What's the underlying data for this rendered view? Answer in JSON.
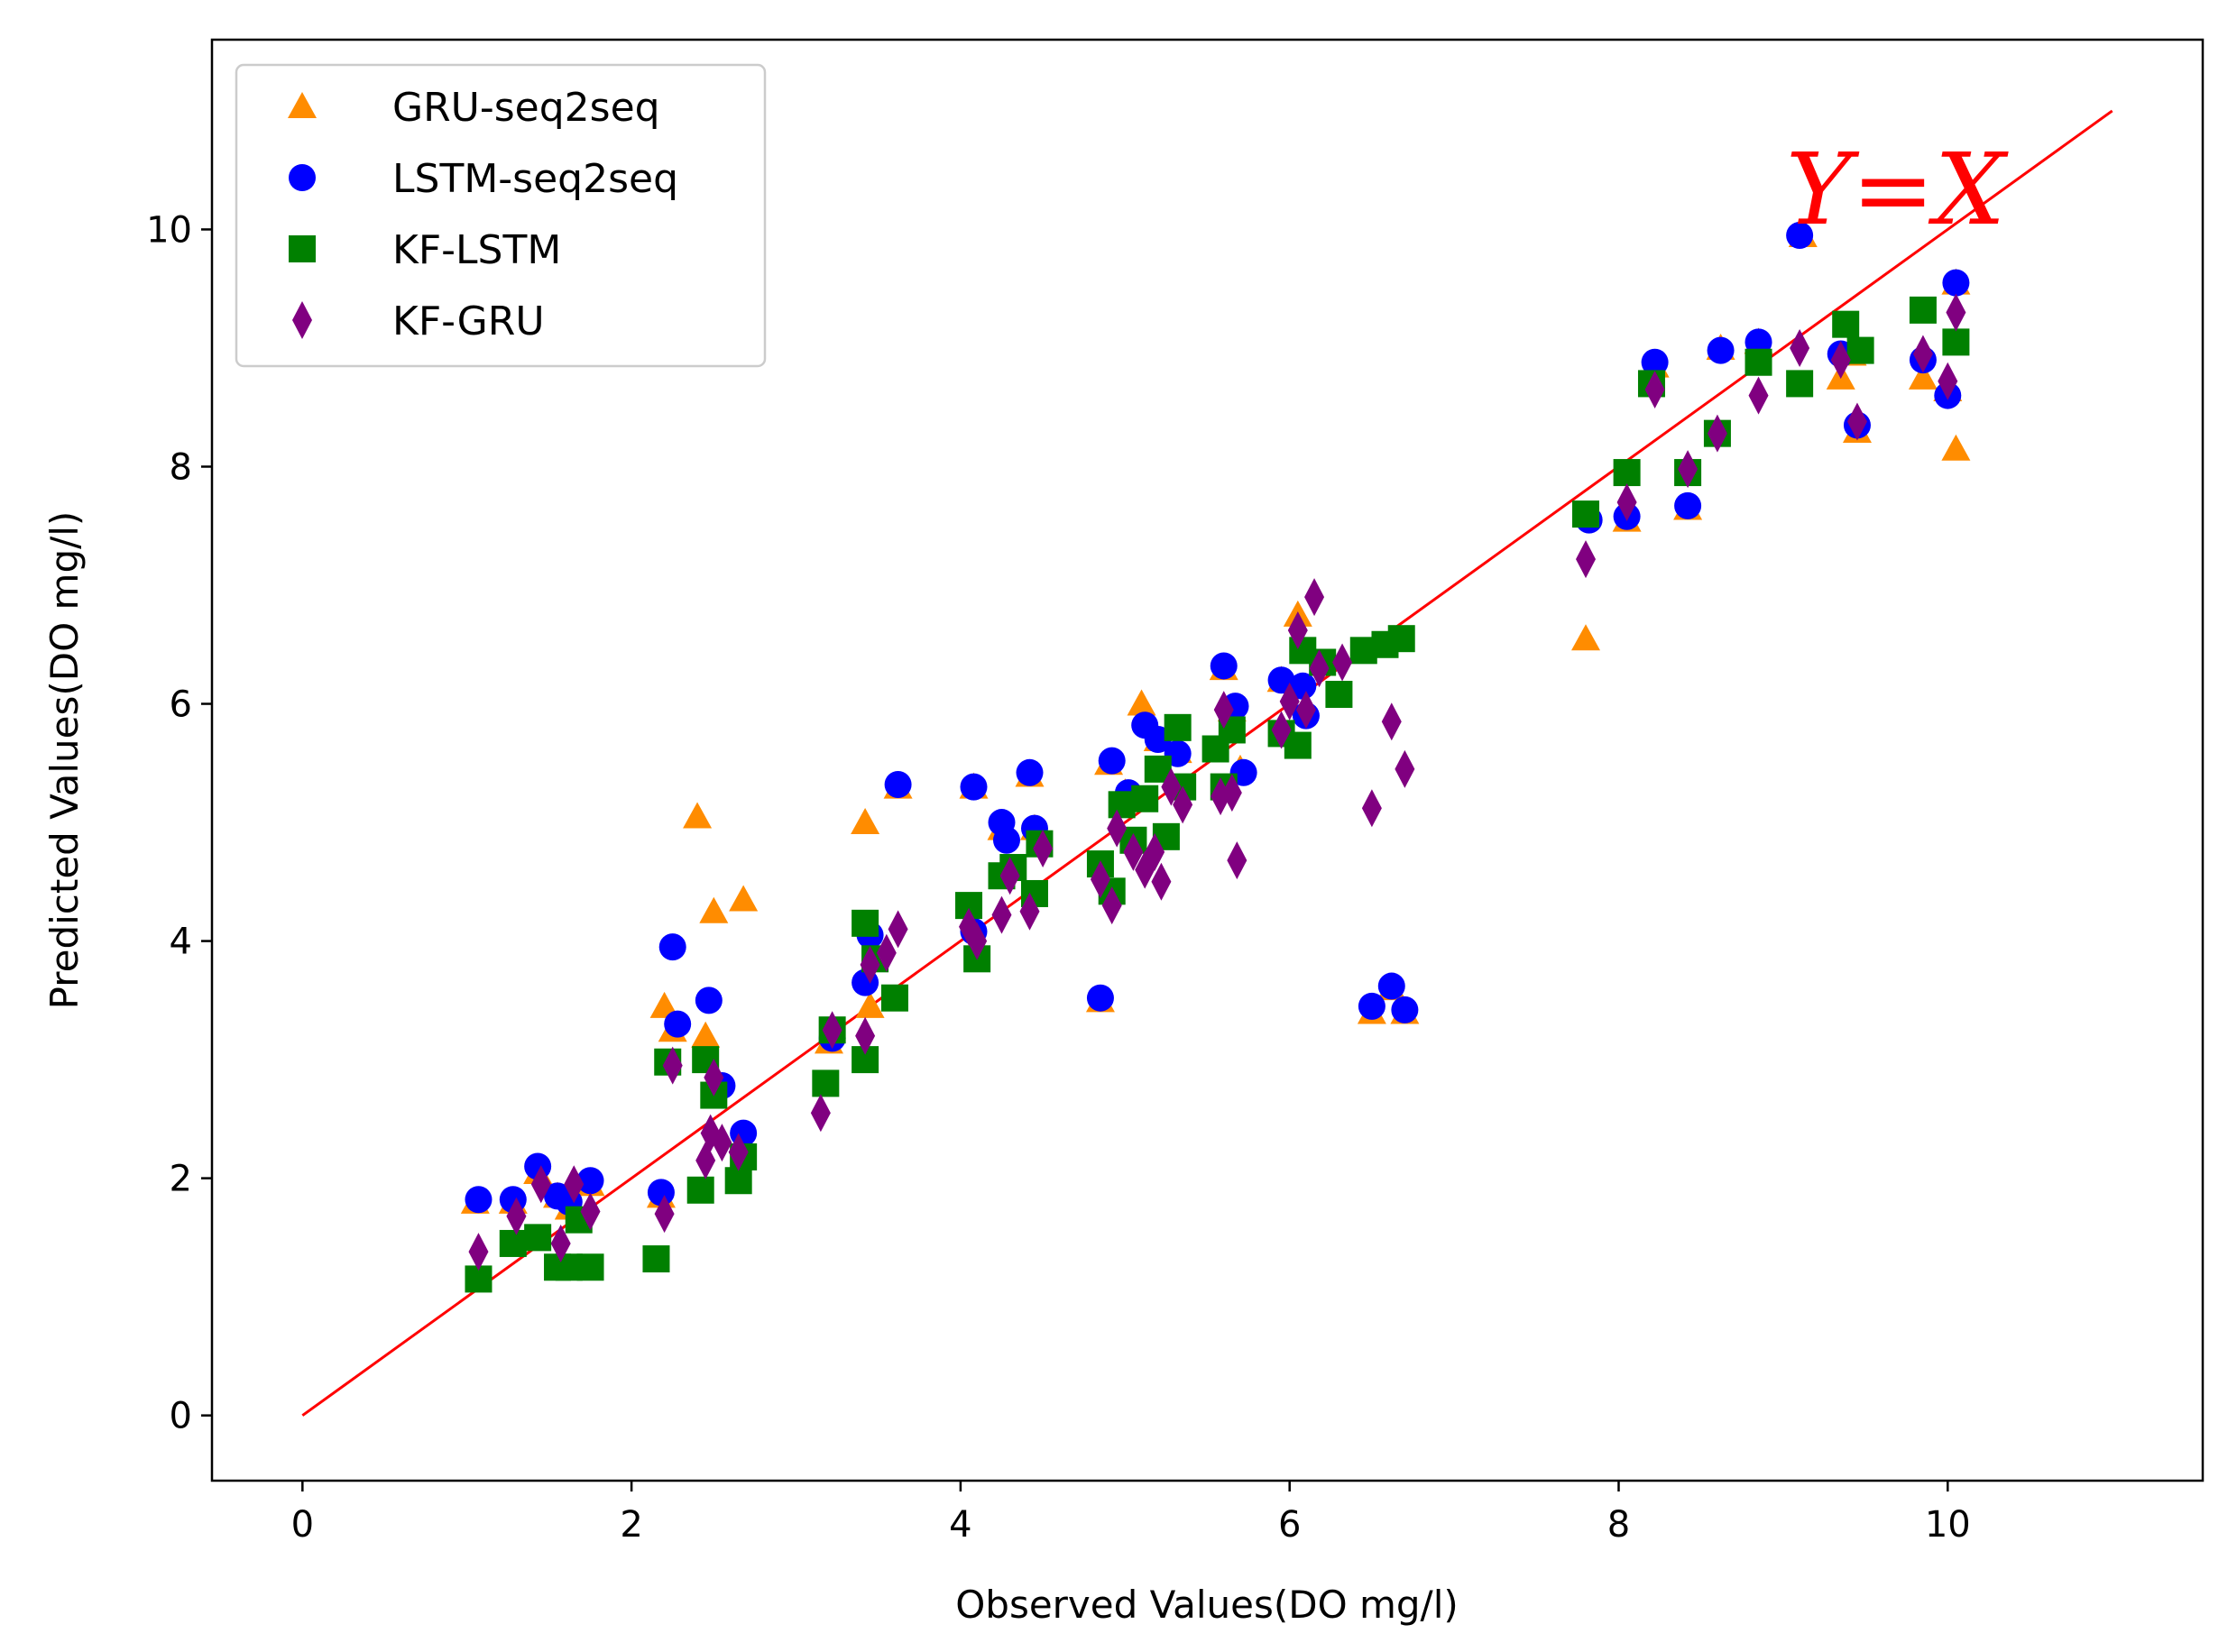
{
  "chart_data": {
    "type": "scatter",
    "title": "",
    "xlabel": "Observed Values(DO mg/l)",
    "ylabel": "Predicted Values(DO mg/l)",
    "xlim": [
      -0.55,
      11.55
    ],
    "ylim": [
      -0.55,
      11.6
    ],
    "xticks": [
      0,
      2,
      4,
      6,
      8,
      10
    ],
    "yticks": [
      0,
      2,
      4,
      6,
      8,
      10
    ],
    "grid": false,
    "legend_position": "top-left",
    "reference_line": {
      "label": "Y=X",
      "from": [
        0,
        0
      ],
      "to": [
        11,
        11
      ],
      "color": "#ff0000"
    },
    "series": [
      {
        "name": "GRU-seq2seq",
        "marker": "triangle",
        "color": "#ff8c00",
        "points": [
          [
            1.05,
            1.8
          ],
          [
            1.28,
            1.8
          ],
          [
            1.43,
            2.05
          ],
          [
            1.55,
            1.85
          ],
          [
            1.62,
            1.75
          ],
          [
            1.75,
            1.95
          ],
          [
            2.18,
            1.85
          ],
          [
            2.2,
            3.45
          ],
          [
            2.25,
            3.25
          ],
          [
            2.4,
            5.05
          ],
          [
            2.45,
            3.2
          ],
          [
            2.5,
            4.25
          ],
          [
            2.68,
            4.35
          ],
          [
            3.2,
            3.15
          ],
          [
            3.42,
            5.0
          ],
          [
            3.45,
            3.45
          ],
          [
            3.62,
            5.3
          ],
          [
            4.08,
            5.3
          ],
          [
            4.25,
            4.95
          ],
          [
            4.42,
            5.4
          ],
          [
            4.45,
            4.95
          ],
          [
            4.85,
            3.5
          ],
          [
            4.9,
            5.5
          ],
          [
            5.0,
            5.25
          ],
          [
            5.1,
            6.0
          ],
          [
            5.2,
            5.7
          ],
          [
            5.32,
            5.6
          ],
          [
            5.6,
            6.3
          ],
          [
            5.65,
            5.95
          ],
          [
            5.7,
            5.45
          ],
          [
            5.95,
            6.2
          ],
          [
            6.05,
            6.75
          ],
          [
            6.5,
            3.4
          ],
          [
            6.62,
            3.6
          ],
          [
            6.7,
            3.4
          ],
          [
            7.8,
            6.55
          ],
          [
            8.05,
            7.55
          ],
          [
            8.22,
            8.85
          ],
          [
            8.42,
            7.65
          ],
          [
            8.62,
            9.0
          ],
          [
            8.85,
            9.05
          ],
          [
            9.12,
            9.95
          ],
          [
            9.35,
            8.75
          ],
          [
            9.42,
            8.95
          ],
          [
            9.45,
            8.3
          ],
          [
            9.85,
            8.75
          ],
          [
            10.0,
            8.65
          ],
          [
            10.05,
            9.55
          ],
          [
            10.05,
            8.15
          ]
        ]
      },
      {
        "name": "LSTM-seq2seq",
        "marker": "circle",
        "color": "#0000ff",
        "points": [
          [
            1.07,
            1.82
          ],
          [
            1.28,
            1.82
          ],
          [
            1.43,
            2.1
          ],
          [
            1.55,
            1.85
          ],
          [
            1.62,
            1.8
          ],
          [
            1.75,
            1.98
          ],
          [
            2.18,
            1.88
          ],
          [
            2.25,
            3.95
          ],
          [
            2.28,
            3.3
          ],
          [
            2.47,
            3.5
          ],
          [
            2.55,
            2.78
          ],
          [
            2.68,
            2.38
          ],
          [
            3.22,
            3.18
          ],
          [
            3.42,
            3.65
          ],
          [
            3.45,
            4.05
          ],
          [
            3.62,
            5.32
          ],
          [
            4.08,
            5.3
          ],
          [
            4.08,
            4.08
          ],
          [
            4.25,
            5.0
          ],
          [
            4.28,
            4.85
          ],
          [
            4.42,
            5.42
          ],
          [
            4.45,
            4.95
          ],
          [
            4.85,
            3.52
          ],
          [
            4.92,
            5.52
          ],
          [
            5.02,
            5.25
          ],
          [
            5.12,
            5.82
          ],
          [
            5.2,
            5.7
          ],
          [
            5.32,
            5.58
          ],
          [
            5.6,
            6.32
          ],
          [
            5.67,
            5.98
          ],
          [
            5.72,
            5.42
          ],
          [
            5.95,
            6.2
          ],
          [
            6.08,
            6.15
          ],
          [
            6.1,
            5.9
          ],
          [
            6.5,
            3.45
          ],
          [
            6.62,
            3.62
          ],
          [
            6.7,
            3.42
          ],
          [
            7.82,
            7.55
          ],
          [
            8.05,
            7.58
          ],
          [
            8.22,
            8.88
          ],
          [
            8.42,
            7.67
          ],
          [
            8.62,
            8.98
          ],
          [
            8.85,
            9.05
          ],
          [
            9.1,
            9.95
          ],
          [
            9.35,
            8.95
          ],
          [
            9.45,
            8.35
          ],
          [
            9.85,
            8.9
          ],
          [
            10.0,
            8.6
          ],
          [
            10.05,
            9.55
          ]
        ]
      },
      {
        "name": "KF-LSTM",
        "marker": "square",
        "color": "#008000",
        "points": [
          [
            1.07,
            1.15
          ],
          [
            1.28,
            1.45
          ],
          [
            1.43,
            1.5
          ],
          [
            1.55,
            1.25
          ],
          [
            1.62,
            1.25
          ],
          [
            1.68,
            1.65
          ],
          [
            1.75,
            1.25
          ],
          [
            2.15,
            1.32
          ],
          [
            2.22,
            2.98
          ],
          [
            2.42,
            1.9
          ],
          [
            2.45,
            3.0
          ],
          [
            2.5,
            2.7
          ],
          [
            2.65,
            1.98
          ],
          [
            2.68,
            2.18
          ],
          [
            3.18,
            2.8
          ],
          [
            3.22,
            3.25
          ],
          [
            3.42,
            3.0
          ],
          [
            3.42,
            4.15
          ],
          [
            3.48,
            3.85
          ],
          [
            3.6,
            3.52
          ],
          [
            4.05,
            4.3
          ],
          [
            4.1,
            3.85
          ],
          [
            4.25,
            4.55
          ],
          [
            4.32,
            4.62
          ],
          [
            4.45,
            4.4
          ],
          [
            4.48,
            4.82
          ],
          [
            4.85,
            4.65
          ],
          [
            4.92,
            4.42
          ],
          [
            4.98,
            5.15
          ],
          [
            5.05,
            4.85
          ],
          [
            5.12,
            5.2
          ],
          [
            5.2,
            5.45
          ],
          [
            5.25,
            4.88
          ],
          [
            5.32,
            5.8
          ],
          [
            5.35,
            5.3
          ],
          [
            5.55,
            5.62
          ],
          [
            5.6,
            5.3
          ],
          [
            5.65,
            5.78
          ],
          [
            5.95,
            5.75
          ],
          [
            6.05,
            5.65
          ],
          [
            6.08,
            6.45
          ],
          [
            6.2,
            6.35
          ],
          [
            6.3,
            6.08
          ],
          [
            6.45,
            6.45
          ],
          [
            6.58,
            6.5
          ],
          [
            6.68,
            6.55
          ],
          [
            7.8,
            7.6
          ],
          [
            8.05,
            7.95
          ],
          [
            8.2,
            8.7
          ],
          [
            8.42,
            7.95
          ],
          [
            8.6,
            8.28
          ],
          [
            8.85,
            8.88
          ],
          [
            9.1,
            8.7
          ],
          [
            9.38,
            9.2
          ],
          [
            9.47,
            8.98
          ],
          [
            9.85,
            9.32
          ],
          [
            10.05,
            9.05
          ]
        ]
      },
      {
        "name": "KF-GRU",
        "marker": "diamond",
        "color": "#800080",
        "points": [
          [
            1.07,
            1.38
          ],
          [
            1.3,
            1.68
          ],
          [
            1.45,
            1.95
          ],
          [
            1.57,
            1.45
          ],
          [
            1.65,
            1.95
          ],
          [
            1.75,
            1.72
          ],
          [
            2.2,
            1.7
          ],
          [
            2.25,
            2.95
          ],
          [
            2.45,
            2.15
          ],
          [
            2.48,
            2.38
          ],
          [
            2.5,
            2.85
          ],
          [
            2.55,
            2.3
          ],
          [
            2.65,
            2.22
          ],
          [
            3.15,
            2.55
          ],
          [
            3.22,
            3.25
          ],
          [
            3.42,
            3.2
          ],
          [
            3.45,
            3.8
          ],
          [
            3.55,
            3.9
          ],
          [
            3.62,
            4.1
          ],
          [
            4.05,
            4.12
          ],
          [
            4.1,
            4.0
          ],
          [
            4.25,
            4.22
          ],
          [
            4.3,
            4.55
          ],
          [
            4.42,
            4.25
          ],
          [
            4.5,
            4.78
          ],
          [
            4.85,
            4.52
          ],
          [
            4.92,
            4.3
          ],
          [
            4.95,
            4.95
          ],
          [
            5.05,
            4.75
          ],
          [
            5.12,
            4.6
          ],
          [
            5.18,
            4.75
          ],
          [
            5.22,
            4.5
          ],
          [
            5.28,
            5.3
          ],
          [
            5.35,
            5.15
          ],
          [
            5.58,
            5.22
          ],
          [
            5.6,
            5.95
          ],
          [
            5.65,
            5.25
          ],
          [
            5.68,
            4.68
          ],
          [
            5.95,
            5.78
          ],
          [
            6.0,
            6.02
          ],
          [
            6.05,
            6.62
          ],
          [
            6.1,
            5.95
          ],
          [
            6.15,
            6.9
          ],
          [
            6.18,
            6.3
          ],
          [
            6.32,
            6.35
          ],
          [
            6.5,
            5.12
          ],
          [
            6.62,
            5.85
          ],
          [
            6.7,
            5.45
          ],
          [
            7.8,
            7.22
          ],
          [
            8.05,
            7.7
          ],
          [
            8.22,
            8.65
          ],
          [
            8.42,
            7.98
          ],
          [
            8.6,
            8.28
          ],
          [
            8.85,
            8.6
          ],
          [
            9.1,
            9.0
          ],
          [
            9.35,
            8.9
          ],
          [
            9.45,
            8.38
          ],
          [
            9.85,
            8.95
          ],
          [
            10.0,
            8.72
          ],
          [
            10.05,
            9.3
          ]
        ]
      }
    ]
  }
}
